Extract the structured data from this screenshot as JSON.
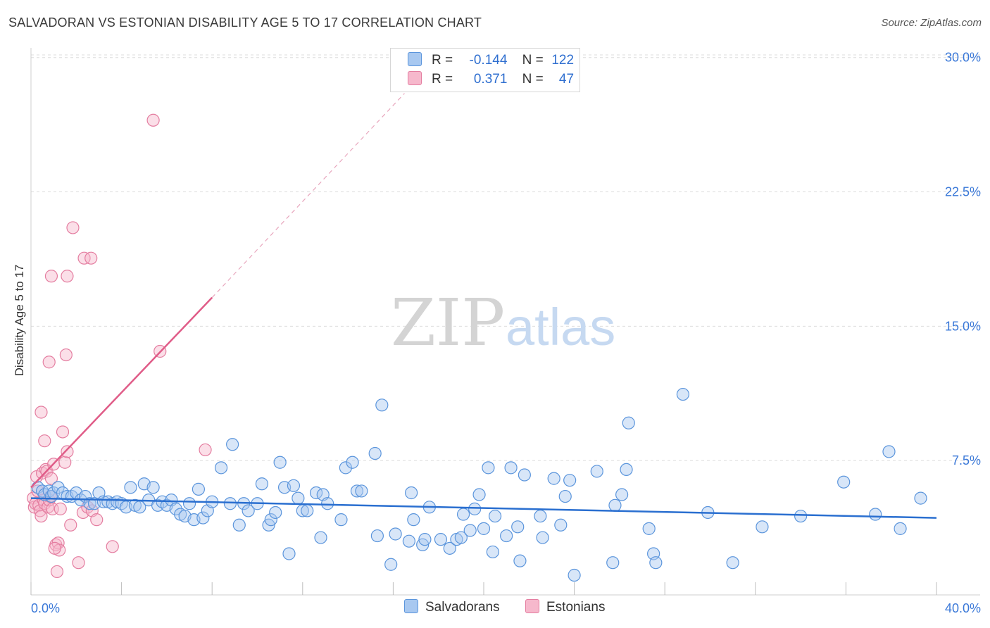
{
  "title": "SALVADORAN VS ESTONIAN DISABILITY AGE 5 TO 17 CORRELATION CHART",
  "source": "Source: ZipAtlas.com",
  "watermark": {
    "zip": "ZIP",
    "atlas": "atlas"
  },
  "legend": {
    "rows": [
      {
        "r_label": "R =",
        "r_value": "-0.144",
        "n_label": "N =",
        "n_value": "122"
      },
      {
        "r_label": "R =",
        "r_value": "0.371",
        "n_label": "N =",
        "n_value": "47"
      }
    ]
  },
  "colors": {
    "blue_fill": "#a8c8f0",
    "blue_stroke": "#5b95dc",
    "blue_line": "#2a6fd0",
    "pink_fill": "#f6b8cc",
    "pink_stroke": "#e47da0",
    "pink_line": "#e05c88",
    "tick_text": "#3a78d8",
    "grid": "#dcdcdc"
  },
  "chart_data": {
    "type": "scatter",
    "title": "SALVADORAN VS ESTONIAN DISABILITY AGE 5 TO 17 CORRELATION CHART",
    "xlabel": "",
    "ylabel": "Disability Age 5 to 17",
    "xlim": [
      0,
      40
    ],
    "ylim": [
      0,
      31
    ],
    "x_tick_labels": [
      "0.0%",
      "40.0%"
    ],
    "y_ticks": [
      7.5,
      15.0,
      22.5,
      30.0
    ],
    "y_tick_labels": [
      "7.5%",
      "15.0%",
      "22.5%",
      "30.0%"
    ],
    "series": [
      {
        "name": "Salvadorans",
        "r": -0.144,
        "n": 122,
        "trend": {
          "x": [
            0,
            40
          ],
          "y": [
            5.4,
            4.3
          ]
        },
        "points": [
          [
            0.3,
            6.0
          ],
          [
            0.5,
            5.8
          ],
          [
            0.6,
            5.6
          ],
          [
            0.8,
            5.8
          ],
          [
            0.9,
            5.5
          ],
          [
            1.0,
            5.7
          ],
          [
            1.2,
            6.0
          ],
          [
            1.4,
            5.7
          ],
          [
            1.6,
            5.5
          ],
          [
            1.8,
            5.5
          ],
          [
            2.0,
            5.7
          ],
          [
            2.2,
            5.3
          ],
          [
            2.4,
            5.5
          ],
          [
            2.6,
            5.1
          ],
          [
            2.8,
            5.1
          ],
          [
            3.0,
            5.7
          ],
          [
            3.2,
            5.2
          ],
          [
            3.4,
            5.2
          ],
          [
            3.6,
            5.1
          ],
          [
            3.8,
            5.2
          ],
          [
            4.0,
            5.1
          ],
          [
            4.2,
            4.9
          ],
          [
            4.4,
            6.0
          ],
          [
            4.6,
            5.0
          ],
          [
            4.8,
            4.9
          ],
          [
            5.0,
            6.2
          ],
          [
            5.2,
            5.3
          ],
          [
            5.4,
            6.0
          ],
          [
            5.6,
            5.0
          ],
          [
            5.8,
            5.2
          ],
          [
            6.0,
            5.0
          ],
          [
            6.2,
            5.3
          ],
          [
            6.4,
            4.8
          ],
          [
            6.6,
            4.5
          ],
          [
            6.8,
            4.4
          ],
          [
            7.0,
            5.1
          ],
          [
            7.2,
            4.2
          ],
          [
            7.4,
            5.9
          ],
          [
            7.6,
            4.3
          ],
          [
            7.8,
            4.7
          ],
          [
            8.0,
            5.2
          ],
          [
            8.4,
            7.1
          ],
          [
            8.8,
            5.1
          ],
          [
            8.9,
            8.4
          ],
          [
            9.2,
            3.9
          ],
          [
            9.4,
            5.1
          ],
          [
            9.6,
            4.7
          ],
          [
            10.0,
            5.1
          ],
          [
            10.2,
            6.2
          ],
          [
            10.5,
            3.9
          ],
          [
            10.6,
            4.2
          ],
          [
            10.8,
            4.6
          ],
          [
            11.0,
            7.4
          ],
          [
            11.2,
            6.0
          ],
          [
            11.4,
            2.3
          ],
          [
            11.6,
            6.1
          ],
          [
            11.8,
            5.4
          ],
          [
            12.0,
            4.7
          ],
          [
            12.2,
            4.7
          ],
          [
            12.6,
            5.7
          ],
          [
            12.8,
            3.2
          ],
          [
            12.9,
            5.6
          ],
          [
            13.1,
            5.1
          ],
          [
            13.7,
            4.2
          ],
          [
            13.9,
            7.1
          ],
          [
            14.2,
            7.4
          ],
          [
            14.4,
            5.8
          ],
          [
            14.6,
            5.8
          ],
          [
            15.2,
            7.9
          ],
          [
            15.3,
            3.3
          ],
          [
            15.5,
            10.6
          ],
          [
            15.9,
            1.7
          ],
          [
            16.1,
            3.4
          ],
          [
            16.7,
            3.0
          ],
          [
            16.8,
            5.7
          ],
          [
            16.9,
            4.2
          ],
          [
            17.3,
            2.8
          ],
          [
            17.4,
            3.1
          ],
          [
            17.6,
            4.9
          ],
          [
            18.1,
            3.1
          ],
          [
            18.5,
            2.6
          ],
          [
            18.8,
            3.1
          ],
          [
            19.0,
            3.2
          ],
          [
            19.1,
            4.5
          ],
          [
            19.4,
            3.6
          ],
          [
            19.6,
            4.8
          ],
          [
            19.8,
            5.6
          ],
          [
            20.0,
            3.7
          ],
          [
            20.2,
            7.1
          ],
          [
            20.4,
            2.4
          ],
          [
            20.5,
            4.4
          ],
          [
            21.0,
            3.3
          ],
          [
            21.2,
            7.1
          ],
          [
            21.5,
            3.8
          ],
          [
            21.6,
            1.9
          ],
          [
            21.8,
            6.7
          ],
          [
            22.5,
            4.4
          ],
          [
            22.6,
            3.2
          ],
          [
            23.1,
            6.5
          ],
          [
            23.4,
            3.9
          ],
          [
            23.6,
            5.5
          ],
          [
            23.8,
            6.4
          ],
          [
            24.0,
            1.1
          ],
          [
            25.0,
            6.9
          ],
          [
            25.7,
            1.8
          ],
          [
            25.8,
            5.0
          ],
          [
            26.1,
            5.6
          ],
          [
            26.3,
            7.0
          ],
          [
            26.4,
            9.6
          ],
          [
            27.3,
            3.7
          ],
          [
            27.5,
            2.3
          ],
          [
            27.6,
            1.8
          ],
          [
            28.8,
            11.2
          ],
          [
            29.9,
            4.6
          ],
          [
            31.0,
            1.8
          ],
          [
            32.3,
            3.8
          ],
          [
            34.0,
            4.4
          ],
          [
            35.9,
            6.3
          ],
          [
            37.3,
            4.5
          ],
          [
            37.9,
            8.0
          ],
          [
            38.4,
            3.7
          ],
          [
            39.3,
            5.4
          ]
        ]
      },
      {
        "name": "Estonians",
        "r": 0.371,
        "n": 47,
        "trend": {
          "x": [
            0,
            8
          ],
          "y": [
            6.0,
            16.6
          ]
        },
        "trend_dashed": {
          "x": [
            8,
            16.5
          ],
          "y": [
            16.6,
            28.0
          ]
        },
        "points": [
          [
            0.1,
            5.4
          ],
          [
            0.15,
            4.9
          ],
          [
            0.2,
            5.1
          ],
          [
            0.25,
            6.6
          ],
          [
            0.3,
            5.8
          ],
          [
            0.35,
            5.0
          ],
          [
            0.4,
            4.7
          ],
          [
            0.45,
            4.4
          ],
          [
            0.5,
            6.8
          ],
          [
            0.55,
            5.3
          ],
          [
            0.6,
            5.1
          ],
          [
            0.65,
            7.0
          ],
          [
            0.7,
            6.9
          ],
          [
            0.75,
            4.9
          ],
          [
            0.8,
            5.3
          ],
          [
            0.85,
            5.5
          ],
          [
            0.9,
            6.5
          ],
          [
            0.95,
            4.8
          ],
          [
            1.0,
            7.3
          ],
          [
            1.1,
            2.8
          ],
          [
            1.2,
            2.9
          ],
          [
            1.25,
            2.5
          ],
          [
            1.3,
            4.8
          ],
          [
            1.4,
            9.1
          ],
          [
            1.5,
            7.4
          ],
          [
            1.6,
            8.0
          ],
          [
            1.75,
            3.9
          ],
          [
            2.1,
            1.8
          ],
          [
            2.3,
            4.6
          ],
          [
            2.5,
            4.9
          ],
          [
            2.7,
            4.7
          ],
          [
            2.9,
            4.2
          ],
          [
            0.6,
            8.6
          ],
          [
            0.45,
            10.2
          ],
          [
            0.8,
            13.0
          ],
          [
            0.9,
            17.8
          ],
          [
            1.55,
            13.4
          ],
          [
            1.6,
            17.8
          ],
          [
            1.85,
            20.5
          ],
          [
            2.35,
            18.8
          ],
          [
            2.65,
            18.8
          ],
          [
            3.6,
            2.7
          ],
          [
            5.4,
            26.5
          ],
          [
            5.7,
            13.6
          ],
          [
            7.7,
            8.1
          ],
          [
            1.05,
            2.6
          ],
          [
            1.15,
            1.3
          ]
        ]
      }
    ]
  }
}
